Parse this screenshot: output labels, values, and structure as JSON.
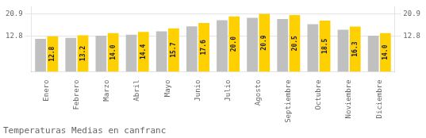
{
  "chart_data": {
    "type": "bar",
    "title": "Temperaturas Medias en canfranc",
    "categories": [
      "Enero",
      "Febrero",
      "Marzo",
      "Abril",
      "Mayo",
      "Junio",
      "Julio",
      "Agosto",
      "Septiembre",
      "Octubre",
      "Noviembre",
      "Diciembre"
    ],
    "series": [
      {
        "color": "#C0C0C0",
        "values": [
          11.904,
          12.276,
          13.02,
          13.392,
          14.601,
          16.368,
          18.6,
          19.437,
          19.065,
          17.205,
          15.159,
          13.02
        ]
      },
      {
        "color": "#FFD000",
        "values": [
          12.8,
          13.2,
          14.0,
          14.4,
          15.7,
          17.6,
          20.0,
          20.9,
          20.5,
          18.5,
          16.3,
          14.0
        ],
        "value_labels": [
          "12.8",
          "13.2",
          "14.0",
          "14.4",
          "15.7",
          "17.6",
          "20.0",
          "20.9",
          "20.5",
          "18.5",
          "16.3",
          "14.0"
        ],
        "data_labels": true
      }
    ],
    "ylim": [
      0,
      23.5
    ],
    "yticks": [
      12.8,
      20.9
    ],
    "y2lim": [
      0,
      23.5
    ],
    "y2ticks": [
      12.8,
      20.9
    ],
    "grid": true
  }
}
